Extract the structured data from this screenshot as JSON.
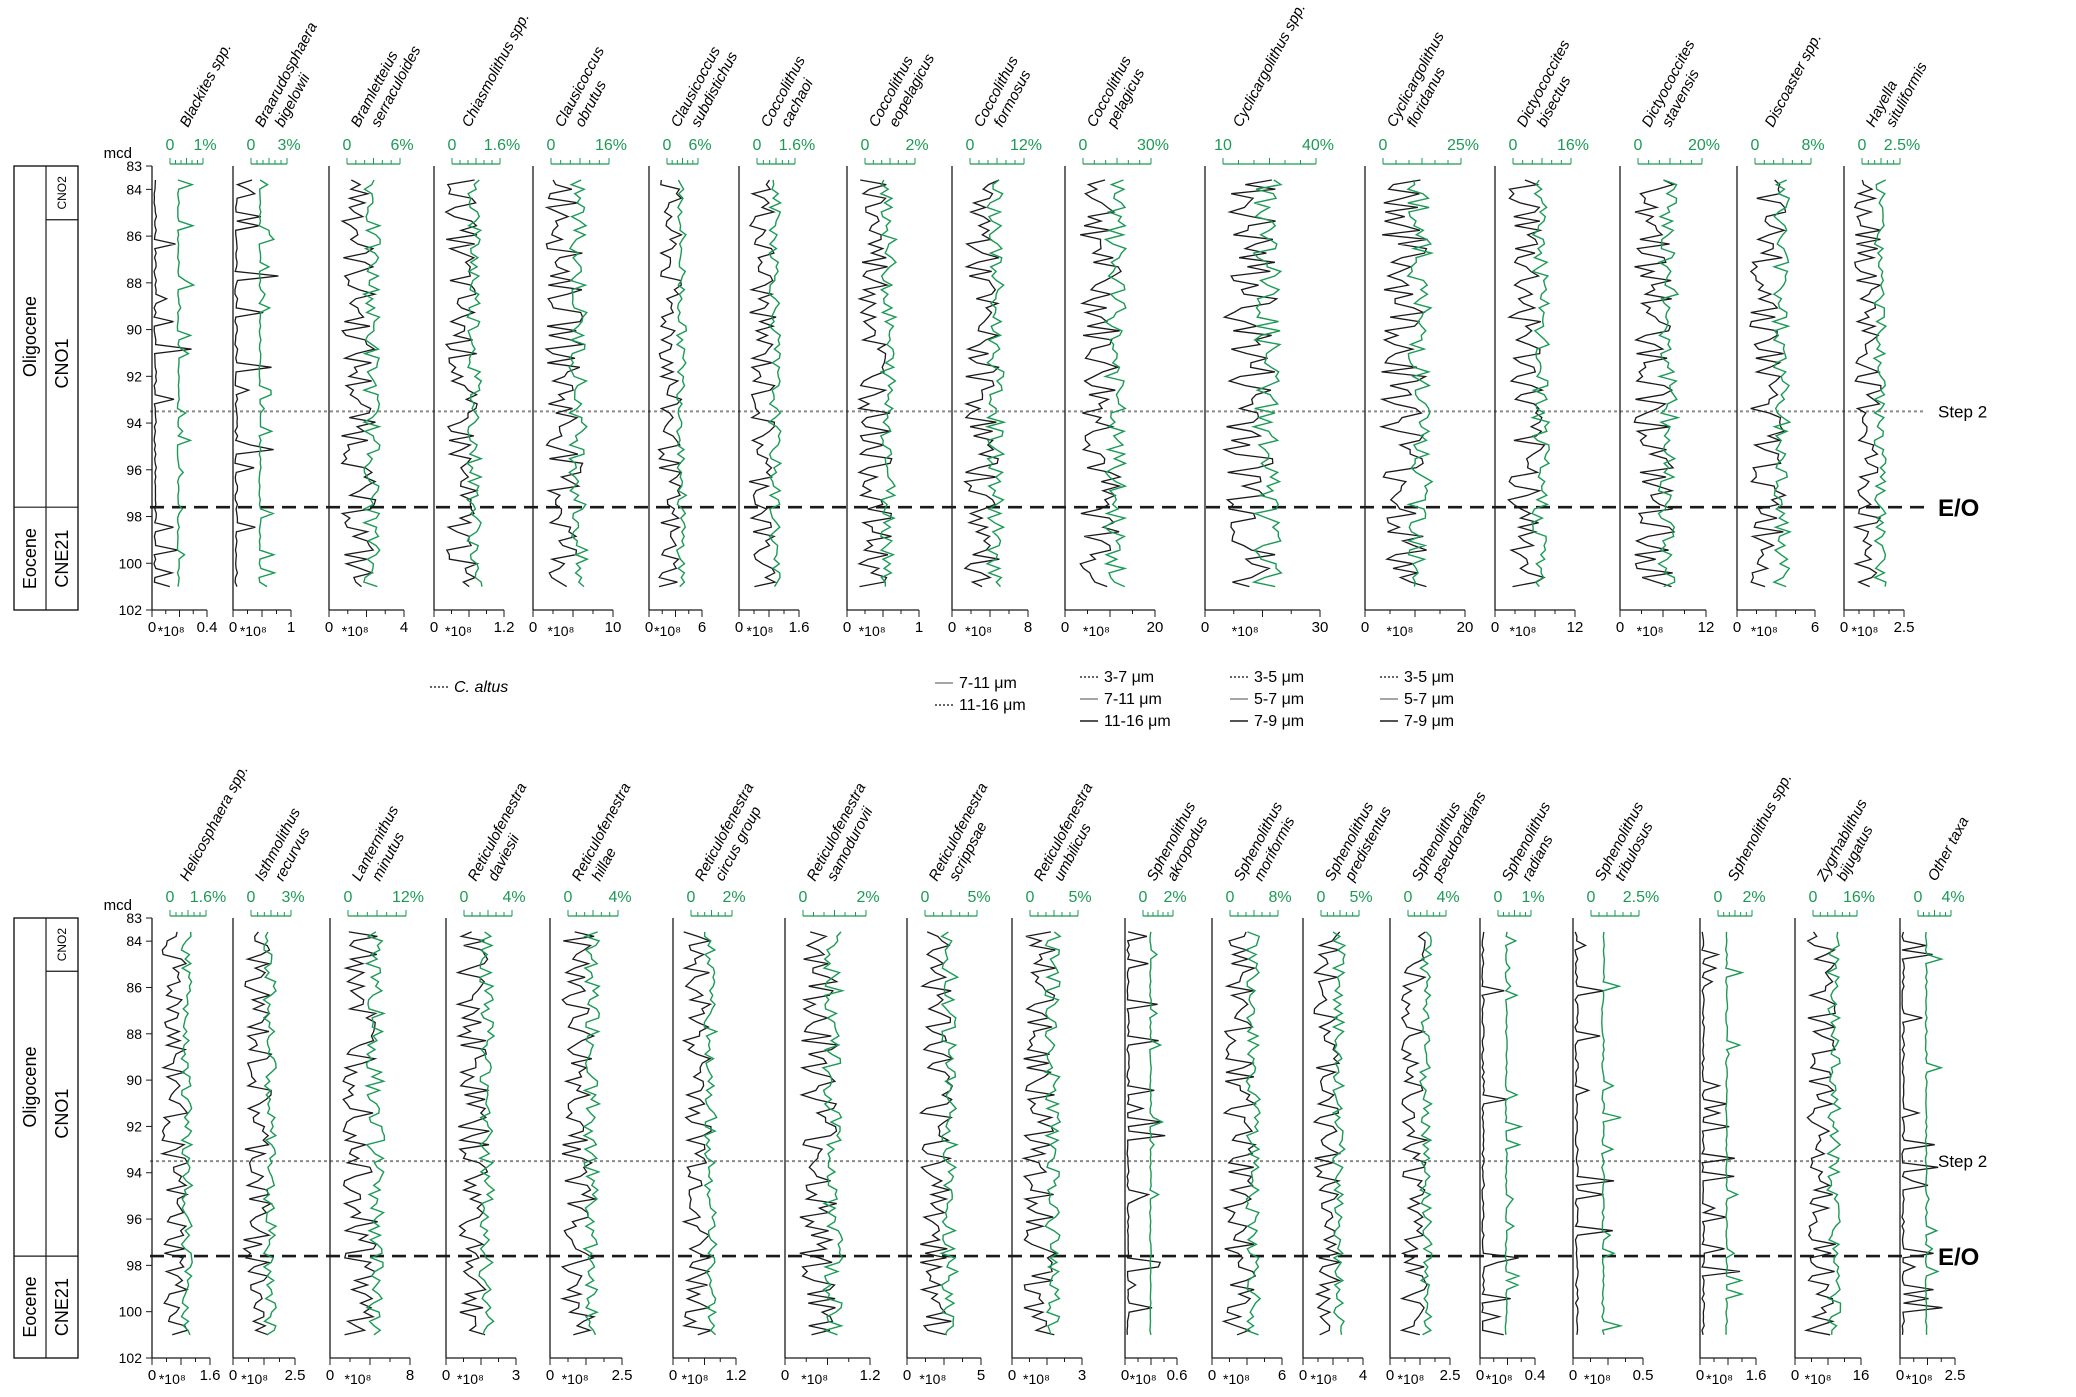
{
  "depth_unit": "mcd",
  "depth_ticks": [
    "83",
    "84",
    "86",
    "88",
    "90",
    "92",
    "94",
    "96",
    "98",
    "100",
    "102"
  ],
  "chronostrat": {
    "epochs": [
      "Oligocene",
      "Eocene"
    ],
    "zones": [
      "CNO2",
      "CNO1",
      "CNE21"
    ]
  },
  "markers": {
    "step2": "Step 2",
    "eo": "E/O"
  },
  "x_unit_black": "*10⁸",
  "colors": {
    "abs": "#1a1a1a",
    "rel": "#1b9a55",
    "step2": "#8a8a8a",
    "eo": "#1a1a1a"
  },
  "panels": [
    {
      "row": 0,
      "title": [
        "Blackites spp."
      ],
      "rel_ticks": [
        "0",
        "1%"
      ],
      "abs_ticks": [
        "0",
        "0.4"
      ]
    },
    {
      "row": 0,
      "title": [
        "Braarudosphaera",
        "bigelowii"
      ],
      "rel_ticks": [
        "0",
        "3%"
      ],
      "abs_ticks": [
        "0",
        "1"
      ]
    },
    {
      "row": 0,
      "title": [
        "Bramletteius",
        "serraculoides"
      ],
      "rel_ticks": [
        "0",
        "6%"
      ],
      "abs_ticks": [
        "0",
        "4"
      ]
    },
    {
      "row": 0,
      "title": [
        "Chiasmolithus spp."
      ],
      "rel_ticks": [
        "0",
        "1.6%"
      ],
      "abs_ticks": [
        "0",
        "1.2"
      ]
    },
    {
      "row": 0,
      "title": [
        "Clausicoccus",
        "obrutus"
      ],
      "rel_ticks": [
        "0",
        "16%"
      ],
      "abs_ticks": [
        "0",
        "10"
      ]
    },
    {
      "row": 0,
      "title": [
        "Clausicoccus",
        "subdistichus"
      ],
      "rel_ticks": [
        "0",
        "6%"
      ],
      "abs_ticks": [
        "0",
        "6"
      ]
    },
    {
      "row": 0,
      "title": [
        "Coccolithus",
        "cachaoi"
      ],
      "rel_ticks": [
        "0",
        "1.6%"
      ],
      "abs_ticks": [
        "0",
        "1.6"
      ]
    },
    {
      "row": 0,
      "title": [
        "Coccolithus",
        "eopelagicus"
      ],
      "rel_ticks": [
        "0",
        "2%"
      ],
      "abs_ticks": [
        "0",
        "1"
      ]
    },
    {
      "row": 0,
      "title": [
        "Coccolithus",
        "formosus"
      ],
      "rel_ticks": [
        "0",
        "12%"
      ],
      "abs_ticks": [
        "0",
        "8"
      ]
    },
    {
      "row": 0,
      "title": [
        "Coccolithus",
        "pelagicus"
      ],
      "rel_ticks": [
        "0",
        "30%"
      ],
      "abs_ticks": [
        "0",
        "20"
      ]
    },
    {
      "row": 0,
      "title": [
        "Cyclicargolithus spp."
      ],
      "rel_ticks": [
        "10",
        "40%"
      ],
      "abs_ticks": [
        "0",
        "30"
      ]
    },
    {
      "row": 0,
      "title": [
        "Cyclicargolithus",
        "floridanus"
      ],
      "rel_ticks": [
        "0",
        "25%"
      ],
      "abs_ticks": [
        "0",
        "20"
      ]
    },
    {
      "row": 0,
      "title": [
        "Dictyococcites",
        "bisectus"
      ],
      "rel_ticks": [
        "0",
        "16%"
      ],
      "abs_ticks": [
        "0",
        "12"
      ]
    },
    {
      "row": 0,
      "title": [
        "Dictyococcites",
        "stavensis"
      ],
      "rel_ticks": [
        "0",
        "20%"
      ],
      "abs_ticks": [
        "0",
        "12"
      ]
    },
    {
      "row": 0,
      "title": [
        "Discoaster spp."
      ],
      "rel_ticks": [
        "0",
        "8%"
      ],
      "abs_ticks": [
        "0",
        "6"
      ]
    },
    {
      "row": 0,
      "title": [
        "Hayella",
        "situliformis"
      ],
      "rel_ticks": [
        "0",
        "2.5%"
      ],
      "abs_ticks": [
        "0",
        "2.5"
      ]
    },
    {
      "row": 1,
      "title": [
        "Helicosphaera spp."
      ],
      "rel_ticks": [
        "0",
        "1.6%"
      ],
      "abs_ticks": [
        "0",
        "1.6"
      ]
    },
    {
      "row": 1,
      "title": [
        "Isthmolithus",
        "recurvus"
      ],
      "rel_ticks": [
        "0",
        "3%"
      ],
      "abs_ticks": [
        "0",
        "2.5"
      ]
    },
    {
      "row": 1,
      "title": [
        "Lanternithus",
        "minutus"
      ],
      "rel_ticks": [
        "0",
        "12%"
      ],
      "abs_ticks": [
        "0",
        "8"
      ]
    },
    {
      "row": 1,
      "title": [
        "Reticulofenestra",
        "daviesii"
      ],
      "rel_ticks": [
        "0",
        "4%"
      ],
      "abs_ticks": [
        "0",
        "3"
      ]
    },
    {
      "row": 1,
      "title": [
        "Reticulofenestra",
        "hillae"
      ],
      "rel_ticks": [
        "0",
        "4%"
      ],
      "abs_ticks": [
        "0",
        "2.5"
      ]
    },
    {
      "row": 1,
      "title": [
        "Reticulofenestra",
        "circus group"
      ],
      "rel_ticks": [
        "0",
        "2%"
      ],
      "abs_ticks": [
        "0",
        "1.2"
      ]
    },
    {
      "row": 1,
      "title": [
        "Reticulofenestra",
        "samodurovii"
      ],
      "rel_ticks": [
        "0",
        "2%"
      ],
      "abs_ticks": [
        "0",
        "1.2"
      ]
    },
    {
      "row": 1,
      "title": [
        "Reticulofenestra",
        "scrippsae"
      ],
      "rel_ticks": [
        "0",
        "5%"
      ],
      "abs_ticks": [
        "0",
        "5"
      ]
    },
    {
      "row": 1,
      "title": [
        "Reticulofenestra",
        "umbilicus"
      ],
      "rel_ticks": [
        "0",
        "5%"
      ],
      "abs_ticks": [
        "0",
        "3"
      ]
    },
    {
      "row": 1,
      "title": [
        "Sphenolithus",
        "akropodus"
      ],
      "rel_ticks": [
        "0",
        "2%"
      ],
      "abs_ticks": [
        "0",
        "0.6"
      ]
    },
    {
      "row": 1,
      "title": [
        "Sphenolithus",
        "moriformis"
      ],
      "rel_ticks": [
        "0",
        "8%"
      ],
      "abs_ticks": [
        "0",
        "6"
      ]
    },
    {
      "row": 1,
      "title": [
        "Sphenolithus",
        "predistentus"
      ],
      "rel_ticks": [
        "0",
        "5%"
      ],
      "abs_ticks": [
        "0",
        "4"
      ]
    },
    {
      "row": 1,
      "title": [
        "Sphenolithus",
        "pseudoradians"
      ],
      "rel_ticks": [
        "0",
        "4%"
      ],
      "abs_ticks": [
        "0",
        "2.5"
      ]
    },
    {
      "row": 1,
      "title": [
        "Sphenolithus",
        "radians"
      ],
      "rel_ticks": [
        "0",
        "1%"
      ],
      "abs_ticks": [
        "0",
        "0.4"
      ]
    },
    {
      "row": 1,
      "title": [
        "Sphenolithus",
        "tribulosus"
      ],
      "rel_ticks": [
        "0",
        "2.5%"
      ],
      "abs_ticks": [
        "0",
        "0.5"
      ]
    },
    {
      "row": 1,
      "title": [
        "Sphenolithus spp."
      ],
      "rel_ticks": [
        "0",
        "2%"
      ],
      "abs_ticks": [
        "0",
        "1.6"
      ]
    },
    {
      "row": 1,
      "title": [
        "Zygrhablithus",
        "bijugatus"
      ],
      "rel_ticks": [
        "0",
        "16%"
      ],
      "abs_ticks": [
        "0",
        "16"
      ]
    },
    {
      "row": 1,
      "title": [
        "Other taxa"
      ],
      "rel_ticks": [
        "0",
        "4%"
      ],
      "abs_ticks": [
        "0",
        "2.5"
      ]
    }
  ],
  "size_legends": [
    {
      "items": [
        {
          "label": "C. altus",
          "style": "dotted"
        }
      ]
    },
    {
      "items": [
        {
          "label": "7-11 μm",
          "style": "solid-gray"
        },
        {
          "label": "11-16 μm",
          "style": "dotted"
        }
      ]
    },
    {
      "items": [
        {
          "label": "3-7 μm",
          "style": "dotted"
        },
        {
          "label": "7-11 μm",
          "style": "solid-gray"
        },
        {
          "label": "11-16 μm",
          "style": "solid-black"
        }
      ]
    },
    {
      "items": [
        {
          "label": "3-5 μm",
          "style": "dotted"
        },
        {
          "label": "5-7 μm",
          "style": "solid-gray"
        },
        {
          "label": "7-9 μm",
          "style": "solid-black"
        }
      ]
    },
    {
      "items": [
        {
          "label": "3-5 μm",
          "style": "dotted"
        },
        {
          "label": "5-7 μm",
          "style": "solid-gray"
        },
        {
          "label": "7-9 μm",
          "style": "solid-black"
        }
      ]
    }
  ],
  "chart_data": {
    "type": "line",
    "description_axes": {
      "y": "mcd",
      "y_range": [
        83,
        102
      ],
      "y_reversed": true
    },
    "step2_depth": 93.5,
    "eo_depth": 97.6,
    "series_meaning": {
      "black": "absolute abundance (*10⁸)",
      "green": "relative abundance (%)"
    }
  }
}
